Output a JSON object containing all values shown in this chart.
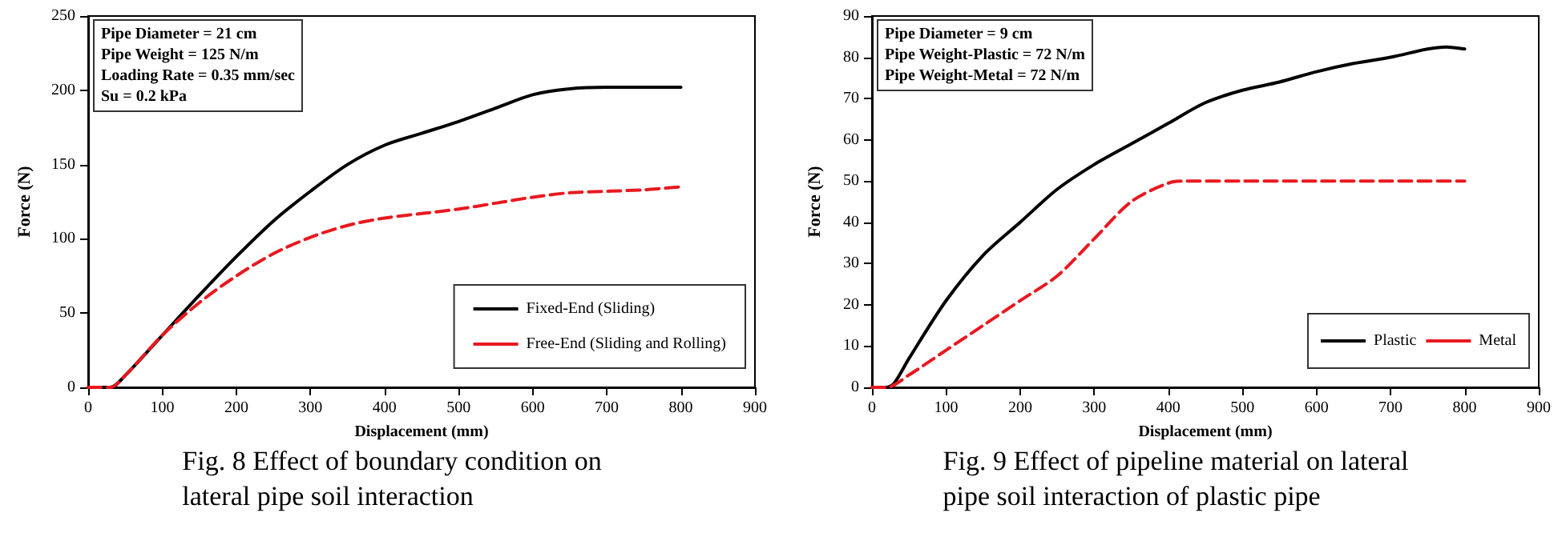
{
  "chart_data": [
    {
      "type": "line",
      "title": "Fig. 8 Effect of boundary condition on\nlateral pipe soil interaction",
      "xlabel": "Displacement (mm)",
      "ylabel": "Force (N)",
      "annotations": [
        "Pipe Diameter = 21 cm",
        "Pipe Weight = 125 N/m",
        "Loading Rate = 0.35 mm/sec",
        "Su = 0.2 kPa"
      ],
      "xlim": [
        0,
        900
      ],
      "xticks": [
        0,
        100,
        200,
        300,
        400,
        500,
        600,
        700,
        800,
        900
      ],
      "ylim": [
        0,
        250
      ],
      "yticks": [
        0,
        50,
        100,
        150,
        200,
        250
      ],
      "grid": false,
      "legend": "bottom right",
      "marker": "none",
      "series": [
        {
          "name": "Fixed-End (Sliding)",
          "color": "#000000",
          "line_style": "solid",
          "x": [
            0,
            30,
            50,
            100,
            150,
            200,
            250,
            300,
            350,
            400,
            450,
            500,
            550,
            600,
            650,
            700,
            750,
            800
          ],
          "values": [
            0,
            0,
            8,
            35,
            62,
            88,
            112,
            132,
            150,
            163,
            171,
            179,
            188,
            197,
            201,
            202,
            202,
            202
          ]
        },
        {
          "name": "Free-End (Sliding and Rolling)",
          "color": "#e8191f",
          "line_style": "dashed",
          "x": [
            0,
            30,
            50,
            100,
            150,
            200,
            250,
            300,
            350,
            400,
            450,
            500,
            550,
            600,
            650,
            700,
            750,
            800
          ],
          "values": [
            0,
            0,
            8,
            35,
            57,
            75,
            90,
            101,
            109,
            114,
            117,
            120,
            124,
            128,
            131,
            132,
            133,
            135
          ]
        }
      ]
    },
    {
      "type": "line",
      "title": "Fig. 9 Effect of pipeline material on lateral\npipe soil interaction of plastic pipe",
      "xlabel": "Displacement (mm)",
      "ylabel": "Force (N)",
      "annotations": [
        "Pipe Diameter = 9 cm",
        "Pipe Weight-Plastic = 72 N/m",
        "Pipe Weight-Metal = 72 N/m"
      ],
      "xlim": [
        0,
        900
      ],
      "xticks": [
        0,
        100,
        200,
        300,
        400,
        500,
        600,
        700,
        800,
        900
      ],
      "ylim": [
        0,
        90
      ],
      "yticks": [
        0,
        10,
        20,
        30,
        40,
        50,
        60,
        70,
        80,
        90
      ],
      "grid": false,
      "legend": "bottom right",
      "marker": "none",
      "series": [
        {
          "name": "Plastic",
          "color": "#000000",
          "line_style": "solid",
          "x": [
            0,
            20,
            30,
            50,
            100,
            150,
            200,
            250,
            300,
            350,
            400,
            450,
            500,
            550,
            600,
            650,
            700,
            750,
            775,
            800
          ],
          "values": [
            0,
            0,
            1,
            7,
            21,
            32,
            40,
            48,
            54,
            59,
            64,
            69,
            72,
            74,
            76.5,
            78.5,
            80,
            82,
            82.5,
            82
          ]
        },
        {
          "name": "Metal",
          "color": "#e8191f",
          "line_style": "dashed",
          "x": [
            0,
            20,
            50,
            100,
            150,
            200,
            250,
            300,
            350,
            400,
            425,
            500,
            600,
            700,
            800
          ],
          "values": [
            0,
            0,
            3,
            9,
            15,
            21,
            27,
            36,
            45,
            49.5,
            50,
            50,
            50,
            50,
            50
          ]
        }
      ]
    }
  ]
}
